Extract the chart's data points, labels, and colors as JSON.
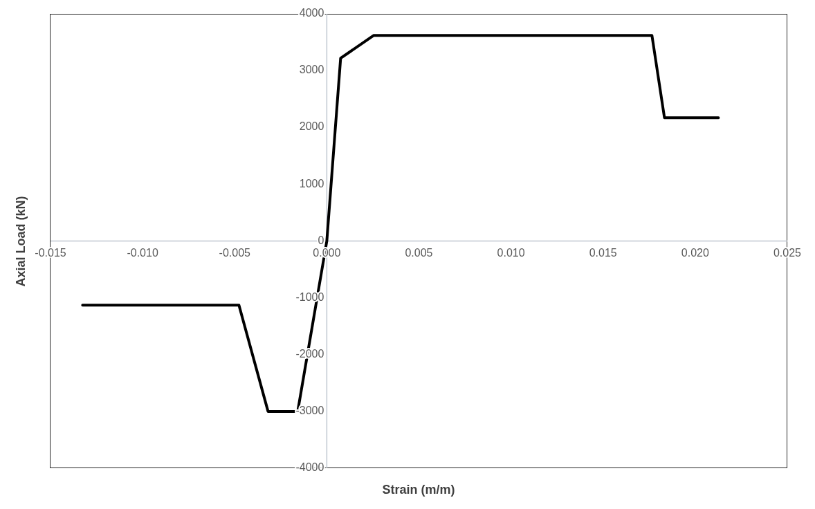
{
  "chart_data": {
    "type": "line",
    "xlabel": "Strain (m/m)",
    "ylabel": "Axial Load (kN)",
    "x": [
      -0.01326,
      -0.00477,
      -0.00319,
      -0.00158,
      0,
      0.00075,
      0.00255,
      0.01765,
      0.01833,
      0.02126
    ],
    "series": [
      {
        "color": "#000000",
        "values": [
          -1130,
          -1130,
          -3000,
          -3000,
          0,
          3220,
          3620,
          3620,
          2170,
          2170
        ]
      }
    ],
    "xlim": [
      -0.015,
      0.025
    ],
    "ylim": [
      -4000,
      4000
    ],
    "xticks": [
      {
        "value": -0.015,
        "label": "-0.015"
      },
      {
        "value": -0.01,
        "label": "-0.010"
      },
      {
        "value": -0.005,
        "label": "-0.005"
      },
      {
        "value": 0,
        "label": "0.000"
      },
      {
        "value": 0.005,
        "label": "0.005"
      },
      {
        "value": 0.01,
        "label": "0.010"
      },
      {
        "value": 0.015,
        "label": "0.015"
      },
      {
        "value": 0.02,
        "label": "0.020"
      },
      {
        "value": 0.025,
        "label": "0.025"
      }
    ],
    "yticks": [
      -4000,
      -3000,
      -2000,
      -1000,
      0,
      1000,
      2000,
      3000,
      4000
    ],
    "marker": "none",
    "line_style": "solid"
  }
}
